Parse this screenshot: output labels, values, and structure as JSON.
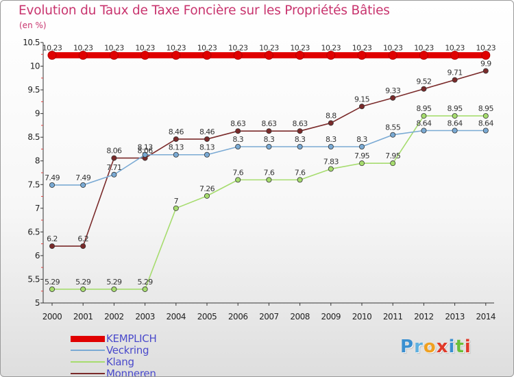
{
  "title": "Evolution du Taux de Taxe Foncière sur les Propriétés Bâties",
  "subtitle": "(en %)",
  "logo": {
    "letters": [
      "P",
      "r",
      "o",
      "x",
      "i",
      "t",
      "i"
    ],
    "colors": [
      "#3a8fd0",
      "#5fb0e0",
      "#f0a020",
      "#e03a2a",
      "#3a8fd0",
      "#6abf3a",
      "#e03a2a"
    ]
  },
  "chart_data": {
    "type": "line",
    "title": "Evolution du Taux de Taxe Foncière sur les Propriétés Bâties",
    "ylabel": "(en %)",
    "xlabel": "",
    "x": [
      "2000",
      "2001",
      "2002",
      "2003",
      "2004",
      "2005",
      "2006",
      "2007",
      "2008",
      "2009",
      "2010",
      "2011",
      "2012",
      "2013",
      "2014"
    ],
    "ylim": [
      5,
      10.5
    ],
    "yticks": [
      "5",
      "5.5",
      "6",
      "6.5",
      "7",
      "7.5",
      "8",
      "8.5",
      "9",
      "9.5",
      "10",
      "10.5"
    ],
    "grid": false,
    "legend_position": "bottom-left",
    "series": [
      {
        "name": "KEMPLICH",
        "color": "#e00000",
        "values": [
          10.23,
          10.23,
          10.23,
          10.23,
          10.23,
          10.23,
          10.23,
          10.23,
          10.23,
          10.23,
          10.23,
          10.23,
          10.23,
          10.23,
          10.23
        ],
        "labels": [
          "10.23",
          "10.23",
          "10.23",
          "10.23",
          "10.23",
          "10.23",
          "10.23",
          "10.23",
          "10.23",
          "10.23",
          "10.23",
          "10.23",
          "10.23",
          "10.23",
          "10.23"
        ]
      },
      {
        "name": "Veckring",
        "color": "#7aaad4",
        "values": [
          7.49,
          7.49,
          7.71,
          8.13,
          8.13,
          8.13,
          8.3,
          8.3,
          8.3,
          8.3,
          8.3,
          8.55,
          8.64,
          8.64,
          8.64
        ],
        "labels": [
          "7.49",
          "7.49",
          "7.71",
          "8.13",
          "8.13",
          "8.13",
          "8.3",
          "8.3",
          "8.3",
          "8.3",
          "8.3",
          "8.55",
          "8.64",
          "8.64",
          "8.64"
        ]
      },
      {
        "name": "Klang",
        "color": "#a6dc6e",
        "values": [
          5.29,
          5.29,
          5.29,
          5.29,
          7,
          7.26,
          7.6,
          7.6,
          7.6,
          7.83,
          7.95,
          7.95,
          8.95,
          8.95,
          8.95
        ],
        "labels": [
          "5.29",
          "5.29",
          "5.29",
          "5.29",
          "7",
          "7.26",
          "7.6",
          "7.6",
          "7.6",
          "7.83",
          "7.95",
          "7.95",
          "8.95",
          "8.95",
          "8.95"
        ]
      },
      {
        "name": "Monneren",
        "color": "#7a2a2a",
        "values": [
          6.2,
          6.2,
          8.06,
          8.06,
          8.46,
          8.46,
          8.63,
          8.63,
          8.63,
          8.8,
          9.15,
          9.33,
          9.52,
          9.71,
          9.9
        ],
        "labels": [
          "6.2",
          "6.2",
          "8.06",
          "8.06",
          "8.46",
          "8.46",
          "8.63",
          "8.63",
          "8.63",
          "8.8",
          "9.15",
          "9.33",
          "9.52",
          "9.71",
          "9.9"
        ]
      }
    ]
  }
}
